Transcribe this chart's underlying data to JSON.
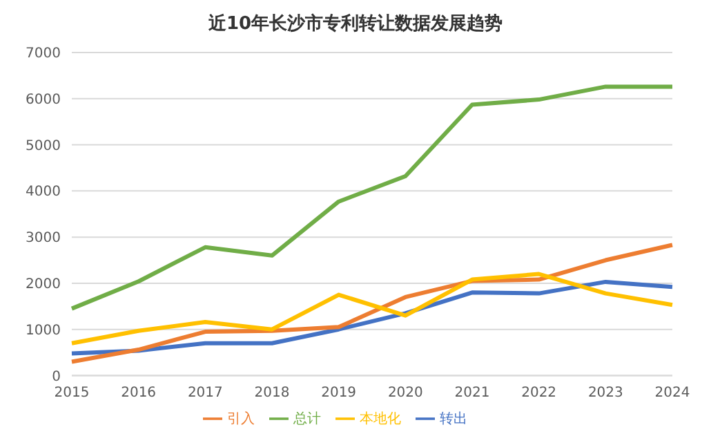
{
  "chart_data": {
    "type": "line",
    "title": "近10年长沙市专利转让数据发展趋势",
    "categories": [
      "2015",
      "2016",
      "2017",
      "2018",
      "2019",
      "2020",
      "2021",
      "2022",
      "2023",
      "2024"
    ],
    "series": [
      {
        "name": "转出",
        "color": "#4472c4",
        "values": [
          480,
          540,
          700,
          700,
          1000,
          1350,
          1800,
          1780,
          2030,
          1920
        ]
      },
      {
        "name": "引入",
        "color": "#ed7d31",
        "values": [
          300,
          560,
          950,
          970,
          1050,
          1700,
          2050,
          2080,
          2500,
          2830
        ]
      },
      {
        "name": "本地化",
        "color": "#ffc000",
        "values": [
          700,
          970,
          1160,
          1000,
          1750,
          1300,
          2080,
          2200,
          1780,
          1530
        ]
      },
      {
        "name": "总计",
        "color": "#70ad47",
        "values": [
          1450,
          2040,
          2780,
          2600,
          3770,
          4320,
          5870,
          5980,
          6260,
          6260
        ]
      }
    ],
    "ylim": [
      0,
      7000
    ],
    "yticks": [
      0,
      1000,
      2000,
      3000,
      4000,
      5000,
      6000,
      7000
    ],
    "grid": "y",
    "legend": "bottom",
    "marker": "none",
    "line_style": "solid"
  }
}
